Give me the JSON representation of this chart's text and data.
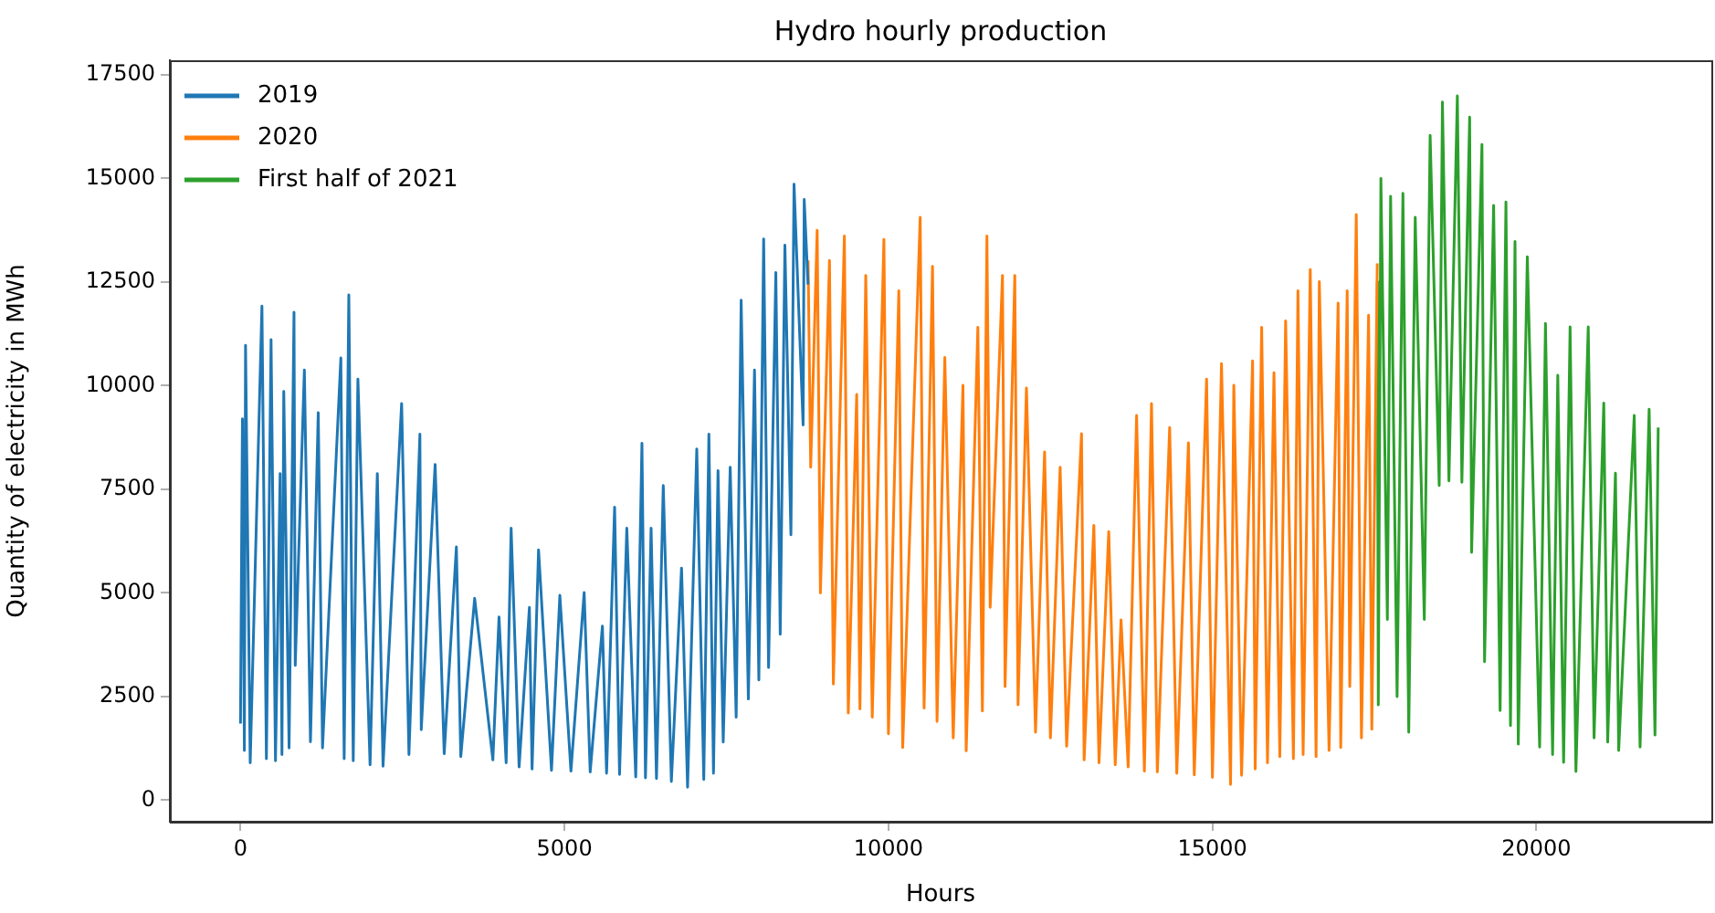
{
  "chart_data": {
    "type": "line",
    "title": "Hydro hourly production",
    "xlabel": "Hours",
    "ylabel": "Quantity of electricity in MWh",
    "xlim": [
      -1090,
      22700
    ],
    "xticks": [
      0,
      5000,
      10000,
      15000,
      20000
    ],
    "ylim": [
      -520,
      17850
    ],
    "yticks": [
      0,
      2500,
      5000,
      7500,
      10000,
      12500,
      15000,
      17500
    ],
    "legend": "top left",
    "grid": false,
    "series": [
      {
        "name": "2019",
        "color": "#1f77b4",
        "x": [
          0,
          30,
          60,
          78,
          150,
          331,
          400,
          472,
          540,
          612,
          640,
          668,
          750,
          826,
          845,
          986,
          1080,
          1200,
          1266,
          1549,
          1600,
          1672,
          1740,
          1812,
          2000,
          2112,
          2200,
          2487,
          2600,
          2769,
          2790,
          3004,
          3144,
          3332,
          3400,
          3614,
          3895,
          3990,
          4100,
          4177,
          4300,
          4459,
          4500,
          4600,
          4800,
          4929,
          5100,
          5304,
          5397,
          5586,
          5650,
          5774,
          5850,
          5962,
          6100,
          6196,
          6250,
          6337,
          6420,
          6525,
          6650,
          6807,
          6900,
          7042,
          7150,
          7229,
          7300,
          7370,
          7450,
          7558,
          7650,
          7727,
          7838,
          7933,
          8000,
          8074,
          8150,
          8262,
          8330,
          8402,
          8495,
          8543,
          8683,
          8700,
          8759
        ],
        "values": [
          1850,
          9200,
          1200,
          10970,
          900,
          11920,
          1000,
          11110,
          950,
          7880,
          1100,
          9860,
          1260,
          11770,
          3250,
          10380,
          1410,
          9350,
          1260,
          10670,
          1000,
          12190,
          950,
          10160,
          850,
          7880,
          820,
          9570,
          1100,
          8830,
          1700,
          8100,
          1120,
          6110,
          1050,
          4870,
          970,
          4420,
          900,
          6560,
          800,
          4650,
          750,
          6040,
          720,
          4940,
          700,
          5010,
          680,
          4200,
          650,
          7070,
          620,
          6560,
          560,
          8610,
          540,
          6560,
          520,
          7590,
          450,
          5600,
          310,
          8470,
          500,
          8830,
          650,
          7950,
          1400,
          8030,
          2000,
          12060,
          2440,
          10380,
          2900,
          13540,
          3200,
          12730,
          4000,
          13390,
          6400,
          14860,
          9050,
          14490,
          12440
        ]
      },
      {
        "name": "2020",
        "color": "#ff7f0e",
        "x": [
          8760,
          8800,
          8900,
          8950,
          9090,
          9150,
          9320,
          9380,
          9510,
          9560,
          9650,
          9750,
          9930,
          10000,
          10160,
          10220,
          10490,
          10550,
          10680,
          10750,
          10870,
          11000,
          11150,
          11200,
          11380,
          11450,
          11520,
          11570,
          11760,
          11800,
          11950,
          12000,
          12130,
          12270,
          12410,
          12500,
          12650,
          12750,
          12980,
          13020,
          13170,
          13250,
          13400,
          13500,
          13590,
          13700,
          13830,
          13950,
          14060,
          14150,
          14340,
          14450,
          14630,
          14720,
          14910,
          15000,
          15140,
          15280,
          15330,
          15450,
          15620,
          15660,
          15760,
          15850,
          15950,
          16040,
          16130,
          16250,
          16320,
          16400,
          16510,
          16600,
          16650,
          16800,
          16940,
          16980,
          17080,
          17120,
          17220,
          17300,
          17410,
          17460,
          17544
        ],
        "values": [
          13020,
          8030,
          13750,
          5000,
          13020,
          2800,
          13610,
          2100,
          9790,
          2200,
          12660,
          2000,
          13530,
          1600,
          12290,
          1270,
          14060,
          2220,
          12880,
          1900,
          10680,
          1500,
          10010,
          1190,
          11410,
          2150,
          13610,
          4650,
          12660,
          2740,
          12660,
          2300,
          9940,
          1640,
          8400,
          1500,
          8030,
          1300,
          8840,
          970,
          6630,
          900,
          6480,
          850,
          4350,
          800,
          9280,
          700,
          9570,
          680,
          8990,
          650,
          8620,
          610,
          10160,
          550,
          10530,
          380,
          10010,
          600,
          10600,
          750,
          11410,
          900,
          10310,
          1050,
          11560,
          1000,
          12290,
          1100,
          12800,
          1050,
          12510,
          1200,
          11990,
          1270,
          12290,
          2740,
          14130,
          1500,
          11700,
          1710,
          12950
        ]
      },
      {
        "name": "First half of 2021",
        "color": "#2ca02c",
        "x": [
          17545,
          17560,
          17600,
          17700,
          17750,
          17850,
          17940,
          18030,
          18130,
          18270,
          18360,
          18500,
          18550,
          18650,
          18780,
          18850,
          18970,
          19000,
          19160,
          19200,
          19340,
          19440,
          19530,
          19600,
          19670,
          19720,
          19860,
          20050,
          20140,
          20250,
          20330,
          20420,
          20520,
          20610,
          20800,
          20890,
          21040,
          21100,
          21220,
          21270,
          21510,
          21600,
          21740,
          21830,
          21880
        ],
        "values": [
          12500,
          2300,
          15000,
          4360,
          14570,
          2500,
          14640,
          1640,
          14060,
          4360,
          16040,
          7590,
          16840,
          7700,
          16990,
          7670,
          16480,
          5980,
          15820,
          3340,
          14350,
          2160,
          14430,
          1800,
          13480,
          1350,
          13110,
          1280,
          11500,
          1100,
          10250,
          910,
          11420,
          690,
          11420,
          1500,
          9580,
          1400,
          7890,
          1200,
          9280,
          1280,
          9430,
          1570,
          8990
        ]
      }
    ]
  }
}
